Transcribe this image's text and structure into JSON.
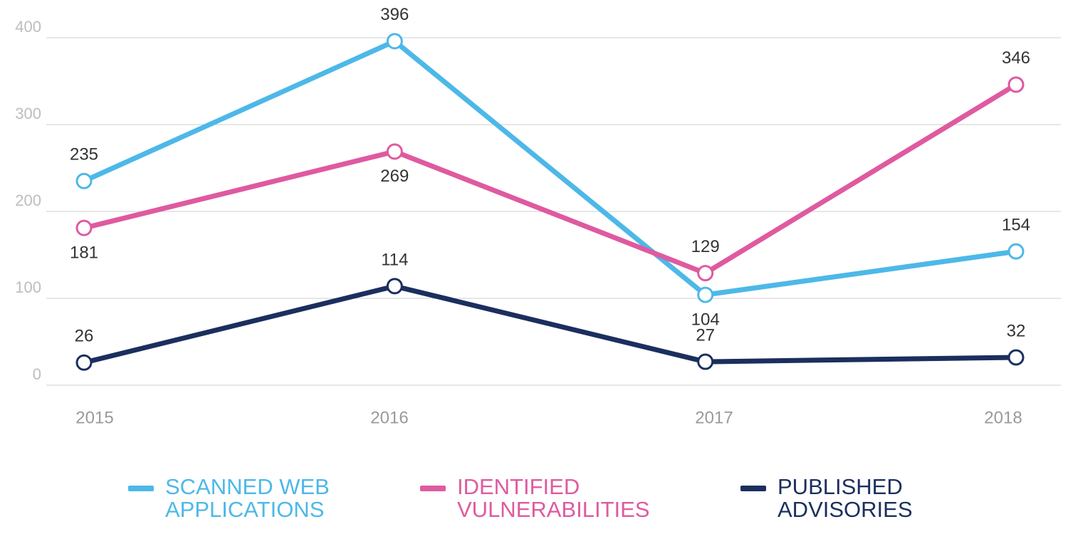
{
  "chart_data": {
    "type": "line",
    "categories": [
      "2015",
      "2016",
      "2017",
      "2018"
    ],
    "series": [
      {
        "name": "SCANNED WEB APPLICATIONS",
        "color": "#4db8e8",
        "values": [
          235,
          396,
          104,
          154
        ]
      },
      {
        "name": "IDENTIFIED VULNERABILITIES",
        "color": "#df5aa0",
        "values": [
          181,
          269,
          129,
          346
        ]
      },
      {
        "name": "PUBLISHED ADVISORIES",
        "color": "#1b2f5e",
        "values": [
          26,
          114,
          27,
          32
        ]
      }
    ],
    "ylim": [
      0,
      400
    ],
    "yticks": [
      0,
      100,
      200,
      300,
      400
    ],
    "grid": true,
    "legend": "bottom"
  }
}
